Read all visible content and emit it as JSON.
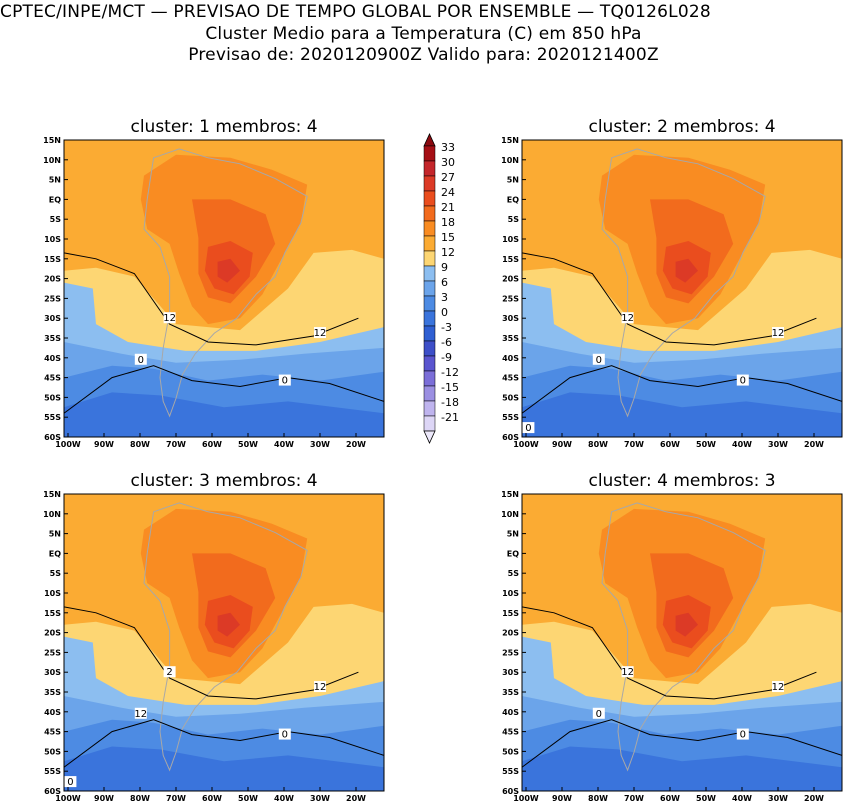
{
  "header": {
    "line1": "CPTEC/INPE/MCT — PREVISAO DE TEMPO GLOBAL POR ENSEMBLE — TQ0126L028",
    "line2": "Cluster Medio para a Temperatura (C) em 850 hPa",
    "line3": "Previsao de: 2020120900Z    Valido para: 2020121400Z"
  },
  "lat_labels": [
    "15N",
    "10N",
    "5N",
    "EQ",
    "5S",
    "10S",
    "15S",
    "20S",
    "25S",
    "30S",
    "35S",
    "40S",
    "45S",
    "50S",
    "55S",
    "60S"
  ],
  "lon_labels": [
    "100W",
    "90W",
    "80W",
    "70W",
    "60W",
    "50W",
    "40W",
    "30W",
    "20W"
  ],
  "panels": [
    {
      "title": "cluster:  1   membros:  4",
      "contour_labels": [
        "12",
        "12",
        "0",
        "0"
      ]
    },
    {
      "title": "cluster:  2   membros:  4",
      "contour_labels": [
        "12",
        "12",
        "0",
        "0",
        "0"
      ]
    },
    {
      "title": "cluster:  3   membros:  4",
      "contour_labels": [
        "2",
        "12",
        "12",
        "0",
        "0"
      ]
    },
    {
      "title": "cluster:  4   membros:  3",
      "contour_labels": [
        "12",
        "12",
        "0",
        "0"
      ]
    }
  ],
  "colorbar": {
    "labels": [
      "33",
      "30",
      "27",
      "24",
      "21",
      "18",
      "15",
      "12",
      "9",
      "6",
      "3",
      "0",
      "-3",
      "-6",
      "-9",
      "-12",
      "-15",
      "-18",
      "-21"
    ],
    "colors": [
      "#a50f15",
      "#c4262b",
      "#dc3a26",
      "#ea4d1e",
      "#f26b1d",
      "#f98c22",
      "#fbab33",
      "#fdd673",
      "#8cbef0",
      "#6ba4ea",
      "#4d8be3",
      "#3a74dc",
      "#2f5fd2",
      "#3d4fc8",
      "#5a55cf",
      "#7b6ed8",
      "#9b8fe2",
      "#bfb4ee",
      "#ddd6f6"
    ],
    "top_cap_color": "#8b0a10",
    "bottom_cap_color": "#ece8fa"
  }
}
